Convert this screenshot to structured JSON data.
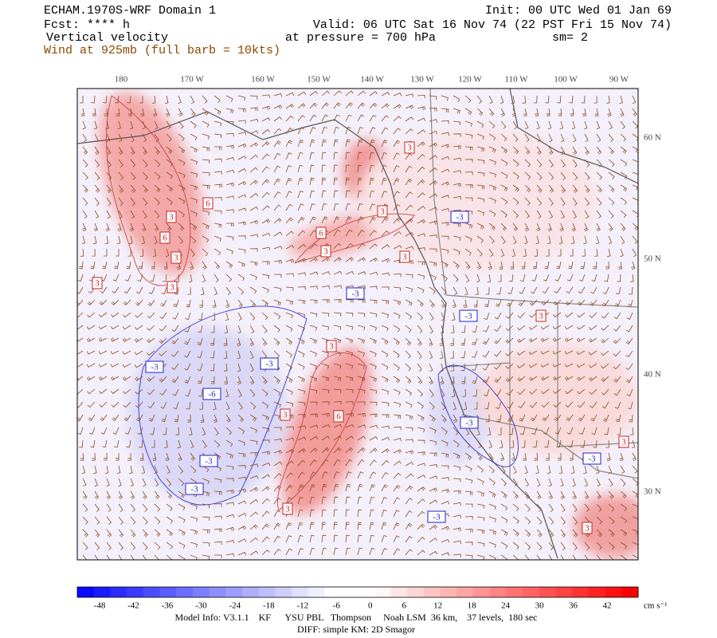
{
  "header": {
    "title": "ECHAM.1970S-WRF Domain 1",
    "init": "Init: 00 UTC Wed 01 Jan 69",
    "forecast": "Fcst: **** h",
    "valid": "Valid: 06 UTC Sat 16 Nov 74 (22 PST Fri 15 Nov 74)",
    "field": "Vertical velocity",
    "pressure": "at pressure =  700 hPa",
    "smoothing": "sm= 2",
    "wind": "Wind at 925mb (full barb = 10kts)"
  },
  "map": {
    "longitude_labels": [
      "180",
      "170 W",
      "160 W",
      "150 W",
      "140 W",
      "130 W",
      "120 W",
      "110 W",
      "100 W",
      "90 W"
    ],
    "latitude_labels": [
      "60 N",
      "50 N",
      "40 N",
      "30 N"
    ],
    "contour_labels": [
      "3",
      "6",
      "3",
      "6",
      "3",
      "3",
      "6",
      "3",
      "3",
      "3",
      "3",
      "3",
      "6",
      "3",
      "3",
      "3",
      "3",
      "3",
      "-3",
      "-3",
      "-3",
      "-3",
      "-3",
      "-6",
      "-3",
      "-3",
      "-3",
      "-3",
      "-3"
    ]
  },
  "colorbar": {
    "labels": [
      "-48",
      "-42",
      "-36",
      "-30",
      "-24",
      "-18",
      "-12",
      "-6",
      "0",
      "6",
      "12",
      "18",
      "24",
      "30",
      "36",
      "42"
    ],
    "units": "cm s⁻¹"
  },
  "footer": {
    "model_info": "Model Info: V3.1.1    KF      YSU PBL   Thompson     Noah LSM  36 km,    37 levels,  180 sec",
    "diff": "DIFF: simple KM: 2D Smagor"
  }
}
